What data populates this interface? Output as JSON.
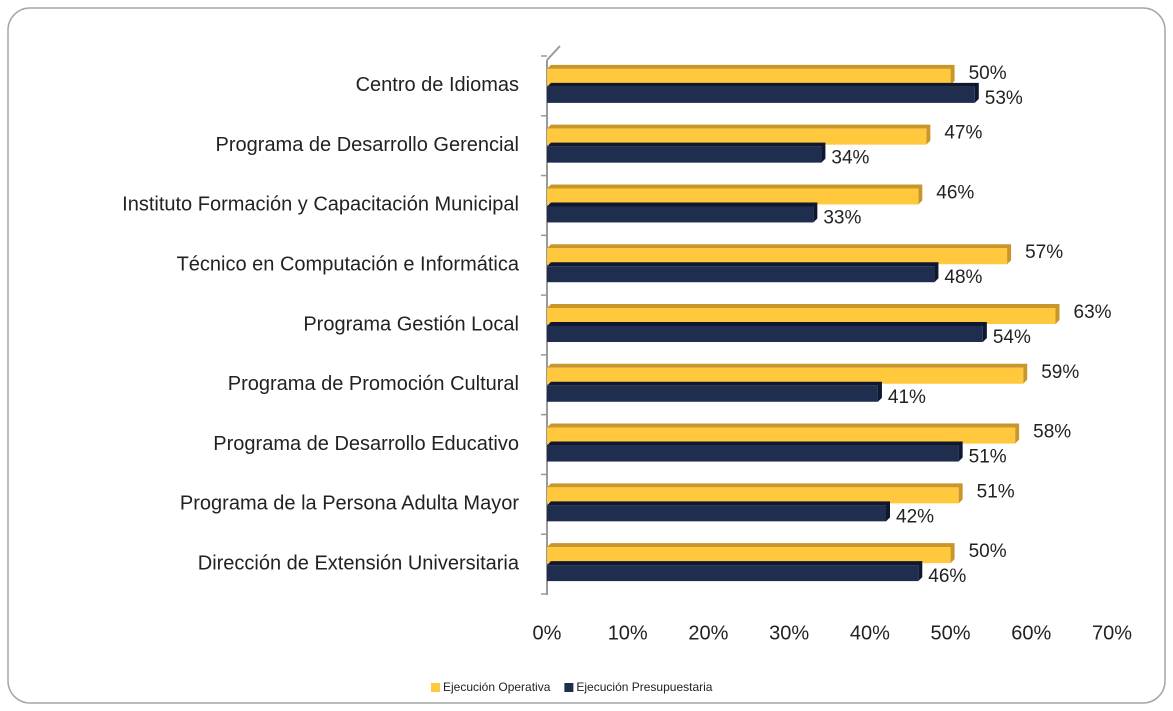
{
  "chart_data": {
    "type": "bar",
    "orientation": "horizontal",
    "categories": [
      "Centro de Idiomas",
      "Programa de Desarrollo Gerencial",
      "Instituto Formación y Capacitación Municipal",
      "Técnico en Computación e Informática",
      "Programa Gestión Local",
      "Programa de Promoción Cultural",
      "Programa de Desarrollo Educativo",
      "Programa de la Persona Adulta Mayor",
      "Dirección de Extensión Universitaria"
    ],
    "series": [
      {
        "name": "Ejecución Operativa",
        "color": "#ffc83d",
        "values": [
          50,
          47,
          46,
          57,
          63,
          59,
          58,
          51,
          50
        ],
        "value_labels": [
          "50%",
          "47%",
          "46%",
          "57%",
          "63%",
          "59%",
          "58%",
          "51%",
          "50%"
        ]
      },
      {
        "name": "Ejecución Presupuestaria",
        "color": "#1f2d4e",
        "values": [
          53,
          34,
          33,
          48,
          54,
          41,
          51,
          42,
          46
        ],
        "value_labels": [
          "53%",
          "34%",
          "33%",
          "48%",
          "54%",
          "41%",
          "51%",
          "42%",
          "46%"
        ]
      }
    ],
    "xlim": [
      0,
      70
    ],
    "xticks": [
      {
        "value": 0,
        "label": "0%"
      },
      {
        "value": 10,
        "label": "10%"
      },
      {
        "value": 20,
        "label": "20%"
      },
      {
        "value": 30,
        "label": "30%"
      },
      {
        "value": 40,
        "label": "40%"
      },
      {
        "value": 50,
        "label": "50%"
      },
      {
        "value": 60,
        "label": "60%"
      },
      {
        "value": 70,
        "label": "70%"
      }
    ],
    "legend": "bottom"
  }
}
